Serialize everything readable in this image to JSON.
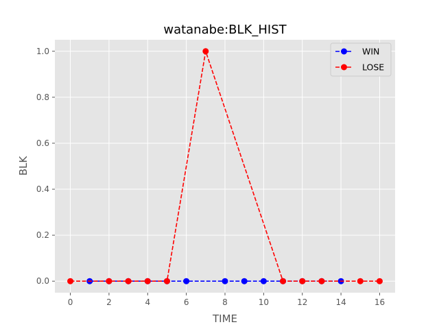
{
  "chart_data": {
    "type": "line",
    "title": "watanabe:BLK_HIST",
    "xlabel": "TIME",
    "ylabel": "BLK",
    "xlim": [
      -0.8,
      16.8
    ],
    "ylim": [
      -0.05,
      1.05
    ],
    "xticks": [
      0,
      2,
      4,
      6,
      8,
      10,
      12,
      14,
      16
    ],
    "xtick_labels": [
      "0",
      "2",
      "4",
      "6",
      "8",
      "10",
      "12",
      "14",
      "16"
    ],
    "yticks": [
      0.0,
      0.2,
      0.4,
      0.6,
      0.8,
      1.0
    ],
    "ytick_labels": [
      "0.0",
      "0.2",
      "0.4",
      "0.6",
      "0.8",
      "1.0"
    ],
    "grid": true,
    "legend_position": "top-right",
    "series": [
      {
        "name": "WIN",
        "color": "#0000ff",
        "line_style": "dashed",
        "marker": "circle",
        "x": [
          1,
          2,
          3,
          4,
          5,
          6,
          8,
          9,
          10,
          11,
          12,
          13,
          14
        ],
        "y": [
          0,
          0,
          0,
          0,
          0,
          0,
          0,
          0,
          0,
          0,
          0,
          0,
          0
        ]
      },
      {
        "name": "LOSE",
        "color": "#ff0000",
        "line_style": "dashed",
        "marker": "circle",
        "x": [
          0,
          2,
          3,
          4,
          5,
          7,
          11,
          12,
          13,
          15,
          16
        ],
        "y": [
          0,
          0,
          0,
          0,
          0,
          1.0,
          0,
          0,
          0,
          0,
          0
        ]
      }
    ]
  }
}
